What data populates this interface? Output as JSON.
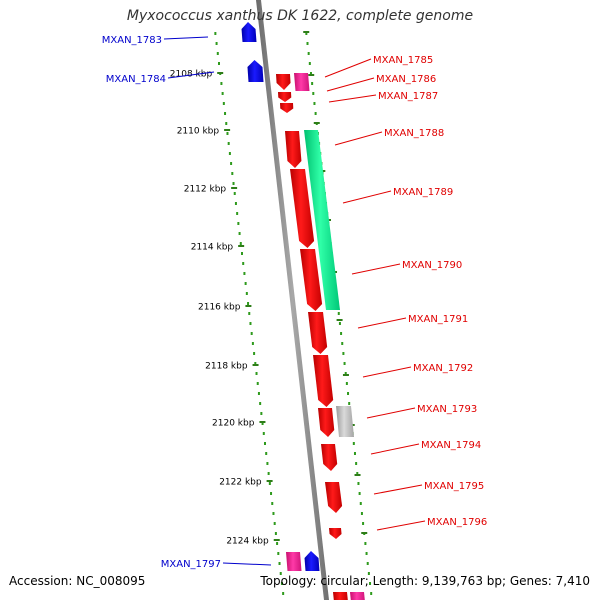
{
  "title": "Myxococcus xanthus DK 1622, complete genome",
  "accession": "Accession: NC_008095",
  "summary": "Topology: circular; Length: 9,139,763 bp; Genes: 7,410",
  "colors": {
    "backbone": "#808080",
    "ruler_tick": "#2e7d18",
    "ruler_dot": "#2e9a1c",
    "label_red": "#e00000",
    "label_blue": "#0000cc"
  },
  "ticks": [
    {
      "label": "2108 kbp"
    },
    {
      "label": "2110 kbp"
    },
    {
      "label": "2112 kbp"
    },
    {
      "label": "2114 kbp"
    },
    {
      "label": "2116 kbp"
    },
    {
      "label": "2118 kbp"
    },
    {
      "label": "2120 kbp"
    },
    {
      "label": "2122 kbp"
    },
    {
      "label": "2124 kbp"
    }
  ],
  "genes": [
    {
      "name": "MXAN_1783",
      "strand": "minus",
      "color": "#0000ff"
    },
    {
      "name": "MXAN_1784",
      "strand": "minus",
      "color": "#0000ff"
    },
    {
      "name": "MXAN_1785",
      "strand": "plus",
      "color": "#ff0000"
    },
    {
      "name": "MXAN_1786",
      "strand": "plus",
      "color": "#ff0000"
    },
    {
      "name": "MXAN_1787",
      "strand": "plus",
      "color": "#ff0000"
    },
    {
      "name": "MXAN_1788",
      "strand": "plus",
      "color": "#ff0000"
    },
    {
      "name": "MXAN_1789",
      "strand": "plus",
      "color": "#ff0000"
    },
    {
      "name": "MXAN_1790",
      "strand": "plus",
      "color": "#ff0000"
    },
    {
      "name": "MXAN_1791",
      "strand": "plus",
      "color": "#ff0000"
    },
    {
      "name": "MXAN_1792",
      "strand": "plus",
      "color": "#ff0000"
    },
    {
      "name": "MXAN_1793",
      "strand": "plus",
      "color": "#ff0000"
    },
    {
      "name": "MXAN_1794",
      "strand": "plus",
      "color": "#ff0000"
    },
    {
      "name": "MXAN_1795",
      "strand": "plus",
      "color": "#ff0000"
    },
    {
      "name": "MXAN_1796",
      "strand": "plus",
      "color": "#ff0000"
    },
    {
      "name": "MXAN_1797",
      "strand": "minus",
      "color": "#0000ff"
    }
  ],
  "features": [
    {
      "kind": "pseudo-feature",
      "color": "#ff2aa0"
    },
    {
      "kind": "rRNA-feature",
      "color": "#00ee88"
    },
    {
      "kind": "other-feature",
      "color": "#b8b8b8"
    }
  ]
}
